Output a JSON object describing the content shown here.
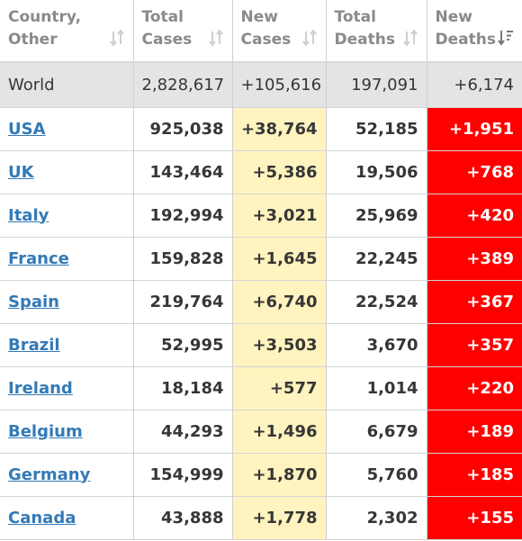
{
  "colors": {
    "new_cases_bg": "#fff3bf",
    "new_deaths_bg": "#ff0000",
    "link": "#337ab7",
    "world_row_bg": "#e4e4e4"
  },
  "headers": [
    {
      "line1": "Country,",
      "line2": "Other",
      "sort": "sort-icon",
      "active": false
    },
    {
      "line1": "Total",
      "line2": "Cases",
      "sort": "sort-icon",
      "active": false
    },
    {
      "line1": "New",
      "line2": "Cases",
      "sort": "sort-icon",
      "active": false
    },
    {
      "line1": "Total",
      "line2": "Deaths",
      "sort": "sort-icon",
      "active": false
    },
    {
      "line1": "New",
      "line2": "Deaths",
      "sort": "sort-desc-icon",
      "active": true
    }
  ],
  "world": {
    "country": "World",
    "total_cases": "2,828,617",
    "new_cases": "+105,616",
    "total_deaths": "197,091",
    "new_deaths": "+6,174"
  },
  "rows": [
    {
      "country": "USA",
      "total_cases": "925,038",
      "new_cases": "+38,764",
      "total_deaths": "52,185",
      "new_deaths": "+1,951"
    },
    {
      "country": "UK",
      "total_cases": "143,464",
      "new_cases": "+5,386",
      "total_deaths": "19,506",
      "new_deaths": "+768"
    },
    {
      "country": "Italy",
      "total_cases": "192,994",
      "new_cases": "+3,021",
      "total_deaths": "25,969",
      "new_deaths": "+420"
    },
    {
      "country": "France",
      "total_cases": "159,828",
      "new_cases": "+1,645",
      "total_deaths": "22,245",
      "new_deaths": "+389"
    },
    {
      "country": "Spain",
      "total_cases": "219,764",
      "new_cases": "+6,740",
      "total_deaths": "22,524",
      "new_deaths": "+367"
    },
    {
      "country": "Brazil",
      "total_cases": "52,995",
      "new_cases": "+3,503",
      "total_deaths": "3,670",
      "new_deaths": "+357"
    },
    {
      "country": "Ireland",
      "total_cases": "18,184",
      "new_cases": "+577",
      "total_deaths": "1,014",
      "new_deaths": "+220"
    },
    {
      "country": "Belgium",
      "total_cases": "44,293",
      "new_cases": "+1,496",
      "total_deaths": "6,679",
      "new_deaths": "+189"
    },
    {
      "country": "Germany",
      "total_cases": "154,999",
      "new_cases": "+1,870",
      "total_deaths": "5,760",
      "new_deaths": "+185"
    },
    {
      "country": "Canada",
      "total_cases": "43,888",
      "new_cases": "+1,778",
      "total_deaths": "2,302",
      "new_deaths": "+155"
    }
  ]
}
